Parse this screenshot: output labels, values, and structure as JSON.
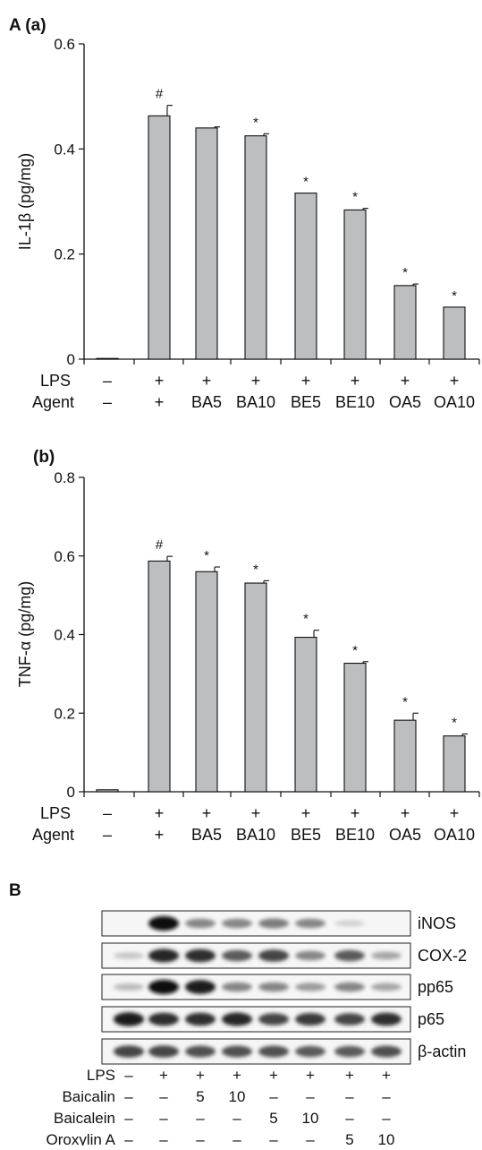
{
  "panel_A": {
    "label": "A (a)",
    "ylabel": "IL-1β (pg/mg)",
    "ylim": [
      0,
      0.6
    ],
    "yticks": [
      "0",
      "0.2",
      "0.4",
      "0.6"
    ],
    "ytick_values": [
      0,
      0.2,
      0.4,
      0.6
    ],
    "lps_label": "LPS",
    "agent_label": "Agent",
    "lps_row": [
      "–",
      "+",
      "+",
      "+",
      "+",
      "+",
      "+",
      "+"
    ],
    "agent_row": [
      "–",
      "+",
      "BA5",
      "BA10",
      "BE5",
      "BE10",
      "OA5",
      "OA10"
    ]
  },
  "panel_b": {
    "label": "(b)",
    "ylabel": "TNF-α (pg/mg)",
    "ylim": [
      0,
      0.8
    ],
    "yticks": [
      "0",
      "0.2",
      "0.4",
      "0.6",
      "0.8"
    ],
    "ytick_values": [
      0,
      0.2,
      0.4,
      0.6,
      0.8
    ],
    "lps_label": "LPS",
    "agent_label": "Agent",
    "lps_row": [
      "–",
      "+",
      "+",
      "+",
      "+",
      "+",
      "+",
      "+"
    ],
    "agent_row": [
      "–",
      "+",
      "BA5",
      "BA10",
      "BE5",
      "BE10",
      "OA5",
      "OA10"
    ]
  },
  "panel_B": {
    "label": "B",
    "blots": [
      "iNOS",
      "COX-2",
      "pp65",
      "p65",
      "β-actin"
    ],
    "lanes": 8,
    "band_intensity": {
      "iNOS": [
        0.0,
        1.0,
        0.45,
        0.45,
        0.5,
        0.45,
        0.1,
        0.0
      ],
      "COX-2": [
        0.15,
        0.9,
        0.85,
        0.65,
        0.75,
        0.45,
        0.65,
        0.3
      ],
      "pp65": [
        0.2,
        1.0,
        0.95,
        0.45,
        0.45,
        0.35,
        0.45,
        0.3
      ],
      "p65": [
        0.95,
        0.85,
        0.85,
        0.9,
        0.75,
        0.8,
        0.75,
        0.85
      ],
      "β-actin": [
        0.75,
        0.75,
        0.7,
        0.7,
        0.7,
        0.65,
        0.65,
        0.7
      ]
    },
    "conditions": [
      {
        "label": "LPS",
        "values": [
          "–",
          "+",
          "+",
          "+",
          "+",
          "+",
          "+",
          "+"
        ]
      },
      {
        "label": "Baicalin",
        "values": [
          "–",
          "–",
          "5",
          "10",
          "–",
          "–",
          "–",
          "–"
        ]
      },
      {
        "label": "Baicalein",
        "values": [
          "–",
          "–",
          "–",
          "–",
          "5",
          "10",
          "–",
          "–"
        ]
      },
      {
        "label": "Oroxylin A",
        "values": [
          "–",
          "–",
          "–",
          "–",
          "–",
          "–",
          "5",
          "10"
        ]
      }
    ]
  },
  "chart_data": [
    {
      "type": "bar",
      "title": "",
      "ylabel": "IL-1β (pg/mg)",
      "ylim": [
        0,
        0.6
      ],
      "categories": [
        "–/–",
        "+/+",
        "BA5",
        "BA10",
        "BE5",
        "BE10",
        "OA5",
        "OA10"
      ],
      "values": [
        0.0,
        0.463,
        0.44,
        0.425,
        0.316,
        0.284,
        0.14,
        0.099
      ],
      "errors": [
        0.0,
        0.02,
        0.002,
        0.004,
        0.0,
        0.003,
        0.003,
        0.0
      ],
      "markers": [
        "",
        "#",
        "",
        "*",
        "*",
        "*",
        "*",
        "*"
      ]
    },
    {
      "type": "bar",
      "title": "",
      "ylabel": "TNF-α (pg/mg)",
      "ylim": [
        0,
        0.8
      ],
      "categories": [
        "–/–",
        "+/+",
        "BA5",
        "BA10",
        "BE5",
        "BE10",
        "OA5",
        "OA10"
      ],
      "values": [
        0.005,
        0.587,
        0.56,
        0.531,
        0.393,
        0.327,
        0.182,
        0.142
      ],
      "errors": [
        0.0,
        0.012,
        0.012,
        0.006,
        0.018,
        0.004,
        0.018,
        0.005
      ],
      "markers": [
        "",
        "#",
        "*",
        "*",
        "*",
        "*",
        "*",
        "*"
      ]
    }
  ]
}
